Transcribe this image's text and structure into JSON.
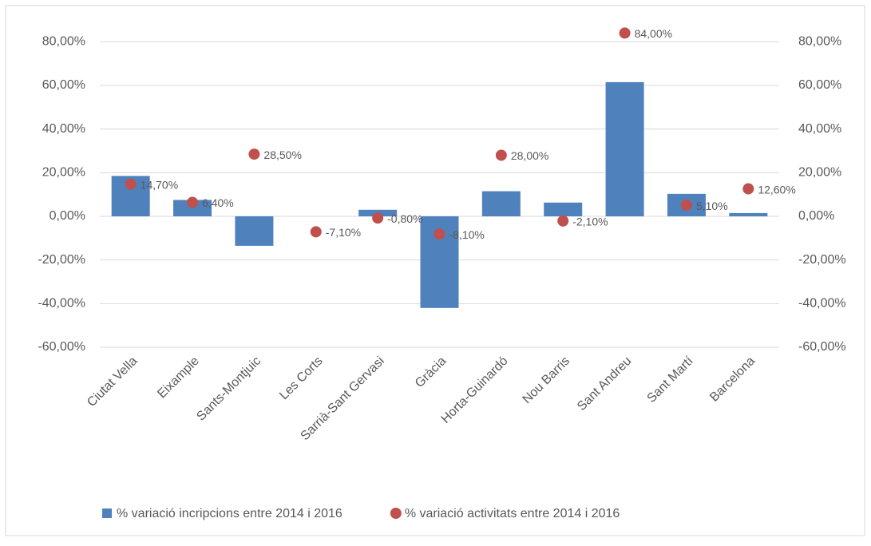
{
  "chart_data": {
    "type": "bar-scatter",
    "categories": [
      "Ciutat Vella",
      "Eixample",
      "Sants-Montjuic",
      "Les Corts",
      "Sarrià-Sant Gervasi",
      "Gràcia",
      "Horta-Guinardó",
      "Nou Barris",
      "Sant Andreu",
      "Sant Martí",
      "Barcelona"
    ],
    "series": [
      {
        "name": "% variació incripcions entre 2014 i 2016",
        "type": "bar",
        "color": "#4f81bd",
        "values": [
          18.5,
          7.5,
          -13.5,
          0,
          3,
          -42,
          11.5,
          6.3,
          61.5,
          10.3,
          1.5
        ]
      },
      {
        "name": "% variació activitats entre 2014 i 2016",
        "type": "scatter",
        "color": "#c0504d",
        "axis": "y2",
        "values": [
          14.7,
          6.4,
          28.5,
          -7.1,
          -0.8,
          -8.1,
          28,
          -2.1,
          84,
          5.1,
          12.6
        ],
        "value_labels": [
          "14,70%",
          "6,40%",
          "28,50%",
          "-7,10%",
          "-0,80%",
          "-8,10%",
          "28,00%",
          "-2,10%",
          "84,00%",
          "5,10%",
          "12,60%"
        ]
      }
    ],
    "ylim": [
      -60,
      90
    ],
    "yticks": [
      {
        "value": -60,
        "label": "-60,00%"
      },
      {
        "value": -40,
        "label": "-40,00%"
      },
      {
        "value": -20,
        "label": "-20,00%"
      },
      {
        "value": 0,
        "label": "0,00%"
      },
      {
        "value": 20,
        "label": "20,00%"
      },
      {
        "value": 40,
        "label": "40,00%"
      },
      {
        "value": 60,
        "label": "60,00%"
      },
      {
        "value": 80,
        "label": "80,00%"
      }
    ],
    "y2lim": [
      -60,
      90
    ],
    "y2ticks": [
      {
        "value": -60,
        "label": "-60,00%"
      },
      {
        "value": -40,
        "label": "-40,00%"
      },
      {
        "value": -20,
        "label": "-20,00%"
      },
      {
        "value": 0,
        "label": "0,00%"
      },
      {
        "value": 20,
        "label": "20,00%"
      },
      {
        "value": 40,
        "label": "40,00%"
      },
      {
        "value": 60,
        "label": "60,00%"
      },
      {
        "value": 80,
        "label": "80,00%"
      }
    ],
    "grid": true,
    "legend": "bottom"
  }
}
